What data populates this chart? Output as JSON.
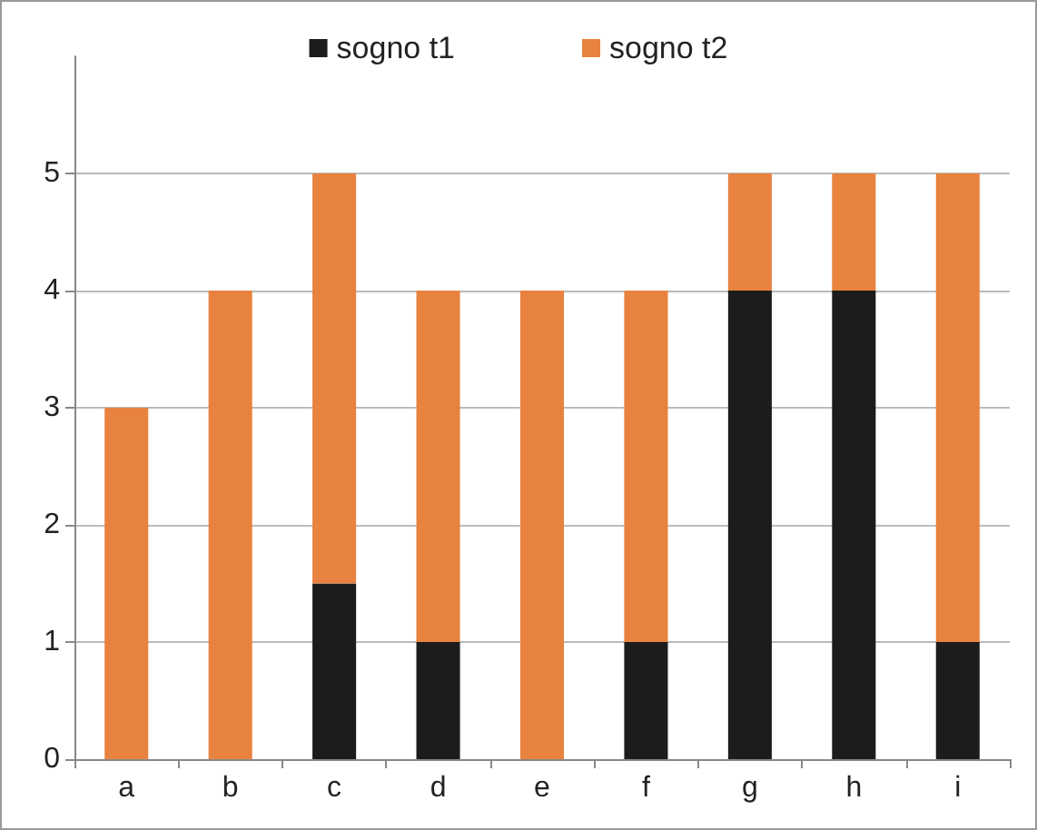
{
  "chart_data": {
    "type": "bar",
    "stacked": true,
    "categories": [
      "a",
      "b",
      "c",
      "d",
      "e",
      "f",
      "g",
      "h",
      "i"
    ],
    "series": [
      {
        "name": "sogno t1",
        "color": "#1c1c1c",
        "values": [
          0,
          0,
          1.5,
          1,
          0,
          1,
          4,
          4,
          1
        ]
      },
      {
        "name": "sogno t2",
        "color": "#e8823f",
        "values": [
          3,
          4,
          3.5,
          3,
          4,
          3,
          1,
          1,
          4
        ]
      }
    ],
    "ylim": [
      0,
      6
    ],
    "yticks": [
      0,
      1,
      2,
      3,
      4,
      5
    ],
    "grid": "y",
    "legend": "top"
  }
}
